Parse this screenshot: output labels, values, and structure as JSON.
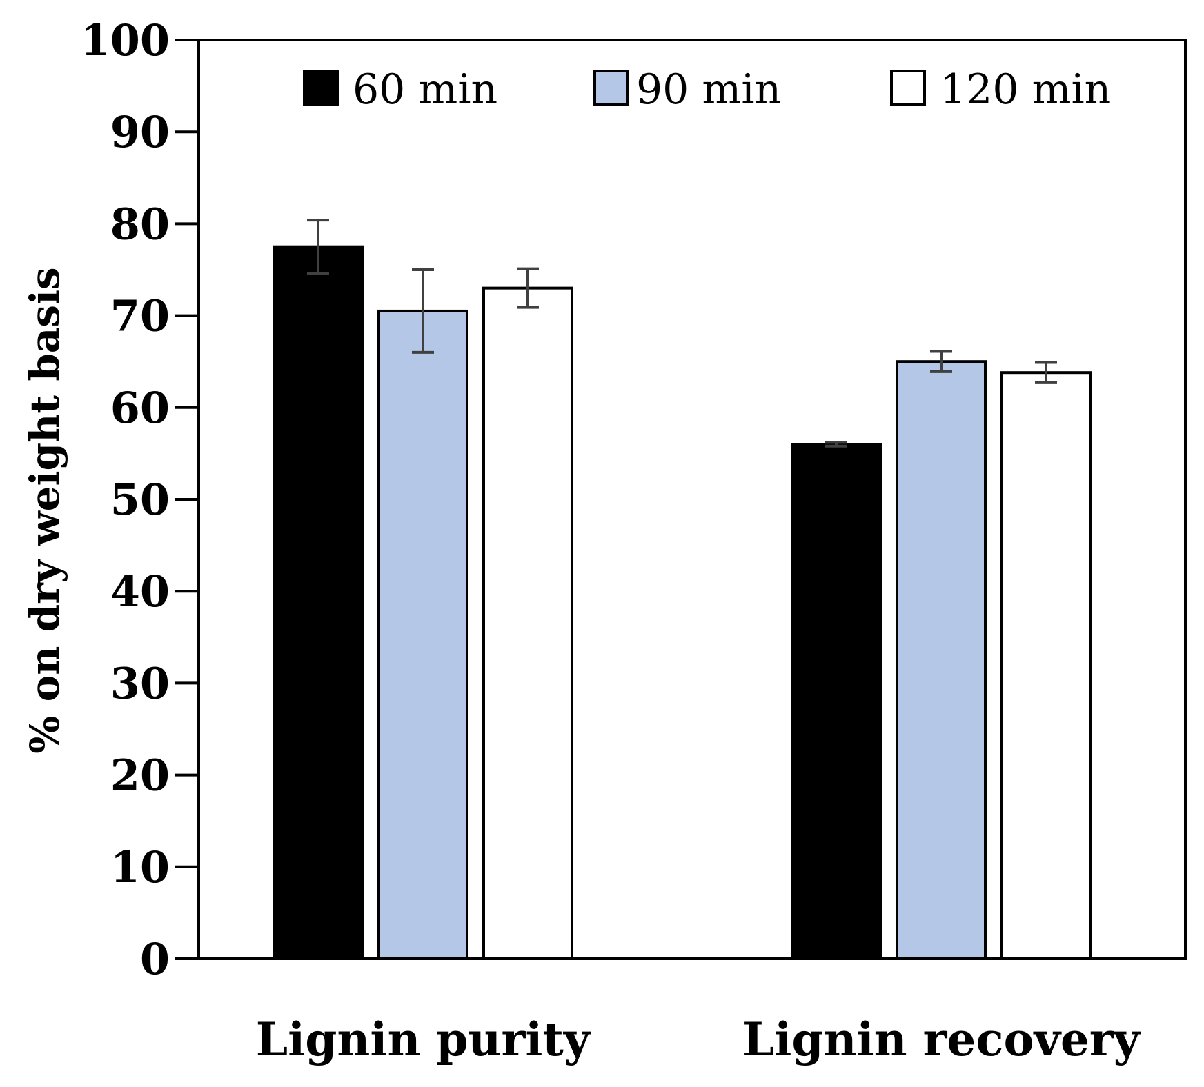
{
  "chart_data": {
    "type": "bar",
    "title": "",
    "xlabel": "",
    "ylabel": "% on dry weight basis",
    "ylim": [
      0,
      100
    ],
    "yticks": [
      0,
      10,
      20,
      30,
      40,
      50,
      60,
      70,
      80,
      90,
      100
    ],
    "categories": [
      "Lignin purity",
      "Lignin recovery"
    ],
    "legend_position": "top",
    "series": [
      {
        "name": "60 min",
        "color": "#000000",
        "values": [
          77.5,
          56.0
        ],
        "errors": [
          2.9,
          0.2
        ]
      },
      {
        "name": "90 min",
        "color": "#b4c7e7",
        "values": [
          70.5,
          65.0
        ],
        "errors": [
          4.5,
          1.1
        ]
      },
      {
        "name": "120 min",
        "color": "#ffffff",
        "values": [
          73.0,
          63.8
        ],
        "errors": [
          2.1,
          1.1
        ]
      }
    ],
    "colors": {
      "axis": "#000000",
      "error_bar": "#404040",
      "bar_outline": "#000000"
    }
  }
}
